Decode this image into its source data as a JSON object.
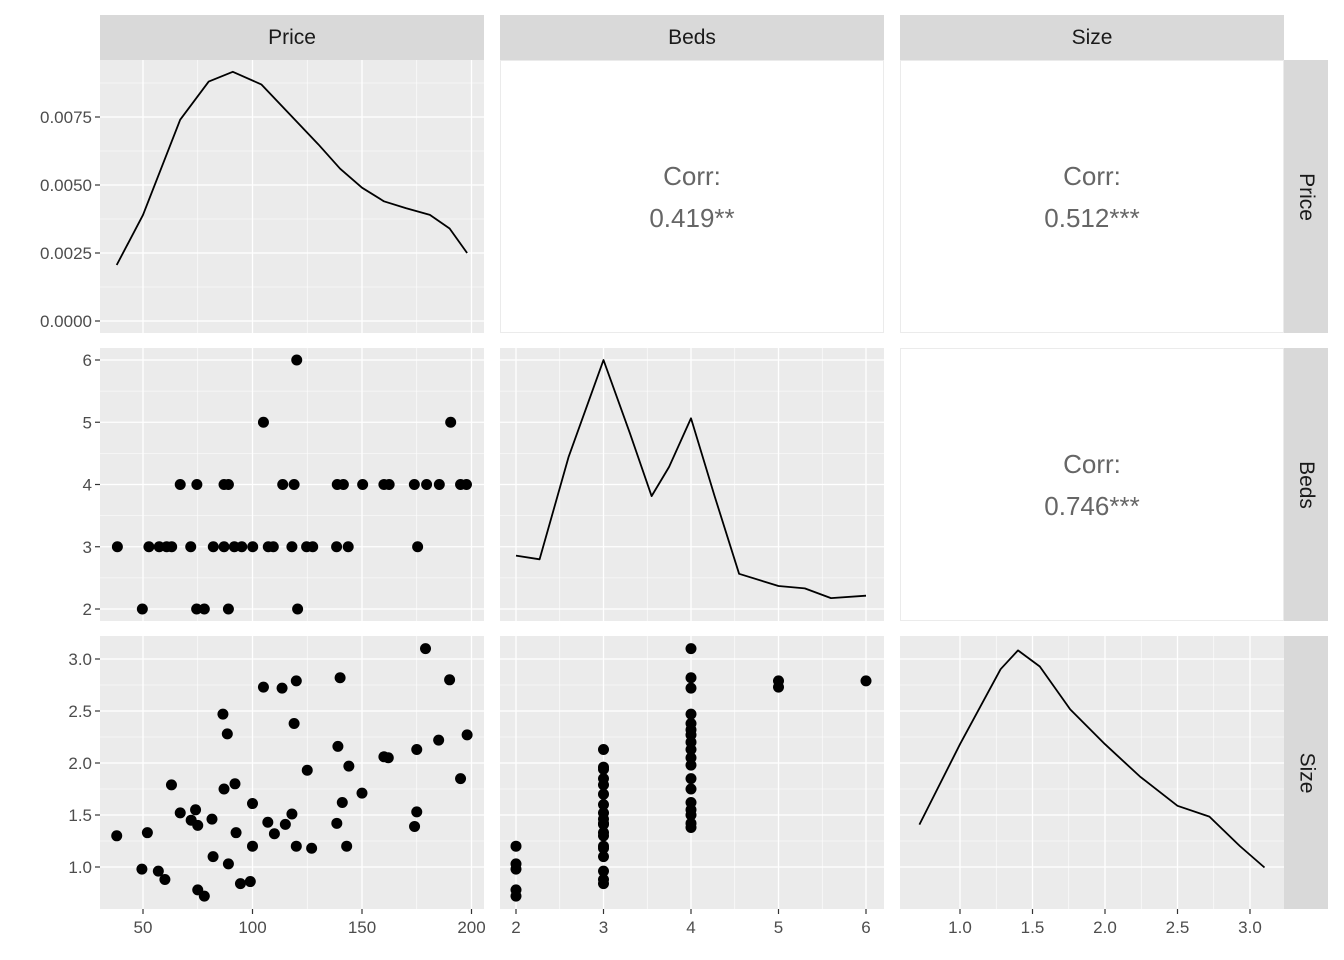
{
  "chart_data": {
    "type": "scatter-matrix",
    "variables": [
      "Price",
      "Beds",
      "Size"
    ],
    "correlations": [
      {
        "pair": [
          "Price",
          "Beds"
        ],
        "label": "Corr:",
        "value": "0.419**"
      },
      {
        "pair": [
          "Price",
          "Size"
        ],
        "label": "Corr:",
        "value": "0.512***"
      },
      {
        "pair": [
          "Beds",
          "Size"
        ],
        "label": "Corr:",
        "value": "0.746***"
      }
    ],
    "axes": {
      "price_ticks": [
        "50",
        "100",
        "150",
        "200"
      ],
      "beds_ticks": [
        "2",
        "3",
        "4",
        "5",
        "6"
      ],
      "size_ticks": [
        "1.0",
        "1.5",
        "2.0",
        "2.5",
        "3.0"
      ],
      "density_ticks": [
        "0.0000",
        "0.0025",
        "0.0050",
        "0.0075"
      ]
    },
    "price_density": [
      [
        38,
        0.00206
      ],
      [
        50,
        0.0039
      ],
      [
        67,
        0.0074
      ],
      [
        80,
        0.0088
      ],
      [
        91,
        0.00916
      ],
      [
        104,
        0.0087
      ],
      [
        117,
        0.0076
      ],
      [
        130,
        0.0065
      ],
      [
        140,
        0.0056
      ],
      [
        150,
        0.0049
      ],
      [
        160,
        0.0044
      ],
      [
        170,
        0.00415
      ],
      [
        181,
        0.0039
      ],
      [
        190,
        0.0034
      ],
      [
        198,
        0.0025
      ]
    ],
    "beds_density_relative": [
      [
        2,
        0.195
      ],
      [
        2.27,
        0.18
      ],
      [
        2.6,
        0.6
      ],
      [
        3,
        1.0
      ],
      [
        3.3,
        0.7
      ],
      [
        3.55,
        0.44
      ],
      [
        3.75,
        0.56
      ],
      [
        4,
        0.76
      ],
      [
        4.27,
        0.44
      ],
      [
        4.55,
        0.12
      ],
      [
        5,
        0.07
      ],
      [
        5.3,
        0.06
      ],
      [
        5.6,
        0.02
      ],
      [
        6,
        0.03
      ]
    ],
    "size_density_relative": [
      [
        0.72,
        0.3
      ],
      [
        1.0,
        0.6
      ],
      [
        1.28,
        0.88
      ],
      [
        1.4,
        0.95
      ],
      [
        1.55,
        0.89
      ],
      [
        1.76,
        0.73
      ],
      [
        2.0,
        0.6
      ],
      [
        2.24,
        0.48
      ],
      [
        2.5,
        0.37
      ],
      [
        2.72,
        0.33
      ],
      [
        2.93,
        0.22
      ],
      [
        3.1,
        0.14
      ]
    ],
    "price_beds": [
      [
        67,
        4
      ],
      [
        74.6,
        4
      ],
      [
        87,
        4
      ],
      [
        89,
        4
      ],
      [
        113.8,
        4
      ],
      [
        119,
        4
      ],
      [
        138.7,
        4
      ],
      [
        141.5,
        4
      ],
      [
        150.3,
        4
      ],
      [
        160,
        4
      ],
      [
        162.4,
        4
      ],
      [
        173.9,
        4
      ],
      [
        179.5,
        4
      ],
      [
        185.3,
        4
      ],
      [
        195,
        4
      ],
      [
        197.7,
        4
      ],
      [
        38.3,
        3
      ],
      [
        52.7,
        3
      ],
      [
        57.4,
        3
      ],
      [
        60.8,
        3
      ],
      [
        63.1,
        3
      ],
      [
        71.8,
        3
      ],
      [
        82.1,
        3
      ],
      [
        87,
        3
      ],
      [
        91.7,
        3
      ],
      [
        95.1,
        3
      ],
      [
        100.1,
        3
      ],
      [
        107.2,
        3
      ],
      [
        109.5,
        3
      ],
      [
        118,
        3
      ],
      [
        124.7,
        3
      ],
      [
        127.5,
        3
      ],
      [
        138.4,
        3
      ],
      [
        143.7,
        3
      ],
      [
        175.4,
        3
      ],
      [
        49.7,
        2
      ],
      [
        74.5,
        2
      ],
      [
        78,
        2
      ],
      [
        89,
        2
      ],
      [
        120.6,
        2
      ],
      [
        105,
        5
      ],
      [
        190.5,
        5
      ],
      [
        120.2,
        6
      ]
    ],
    "price_size": [
      [
        38,
        1.3
      ],
      [
        49.5,
        0.98
      ],
      [
        52,
        1.33
      ],
      [
        57,
        0.96
      ],
      [
        60,
        0.88
      ],
      [
        63,
        1.79
      ],
      [
        67,
        1.52
      ],
      [
        72,
        1.45
      ],
      [
        74,
        1.55
      ],
      [
        75,
        1.4
      ],
      [
        75,
        0.78
      ],
      [
        78,
        0.72
      ],
      [
        82,
        1.1
      ],
      [
        81.5,
        1.46
      ],
      [
        86.5,
        2.47
      ],
      [
        87,
        1.75
      ],
      [
        88.5,
        2.28
      ],
      [
        92,
        1.8
      ],
      [
        89,
        1.03
      ],
      [
        92.5,
        1.33
      ],
      [
        94.5,
        0.84
      ],
      [
        99,
        0.86
      ],
      [
        100,
        1.2
      ],
      [
        100,
        1.61
      ],
      [
        105,
        2.73
      ],
      [
        107,
        1.43
      ],
      [
        110,
        1.32
      ],
      [
        113.5,
        2.72
      ],
      [
        115,
        1.41
      ],
      [
        118,
        1.51
      ],
      [
        119,
        2.38
      ],
      [
        120,
        2.79
      ],
      [
        120,
        1.2
      ],
      [
        125,
        1.93
      ],
      [
        127,
        1.18
      ],
      [
        138.5,
        1.42
      ],
      [
        139,
        2.16
      ],
      [
        140,
        2.82
      ],
      [
        141,
        1.62
      ],
      [
        143,
        1.2
      ],
      [
        144,
        1.97
      ],
      [
        150,
        1.71
      ],
      [
        160,
        2.06
      ],
      [
        162,
        2.05
      ],
      [
        174,
        1.39
      ],
      [
        175,
        1.53
      ],
      [
        175,
        2.13
      ],
      [
        179,
        3.1
      ],
      [
        185,
        2.22
      ],
      [
        190,
        2.8
      ],
      [
        195,
        1.85
      ],
      [
        198,
        2.27
      ]
    ],
    "beds_size": [
      [
        2,
        1.2
      ],
      [
        2,
        1.03
      ],
      [
        2,
        0.98
      ],
      [
        2,
        0.78
      ],
      [
        2,
        0.72
      ],
      [
        3,
        0.84
      ],
      [
        3,
        0.88
      ],
      [
        3,
        0.96
      ],
      [
        3,
        1.1
      ],
      [
        3,
        1.18
      ],
      [
        3,
        1.2
      ],
      [
        3,
        1.3
      ],
      [
        3,
        1.33
      ],
      [
        3,
        1.41
      ],
      [
        3,
        1.42
      ],
      [
        3,
        1.46
      ],
      [
        3,
        1.52
      ],
      [
        3,
        1.6
      ],
      [
        3,
        1.7
      ],
      [
        3,
        1.79
      ],
      [
        3,
        1.85
      ],
      [
        3,
        1.94
      ],
      [
        3,
        1.96
      ],
      [
        3,
        2.13
      ],
      [
        4,
        1.38
      ],
      [
        4,
        1.42
      ],
      [
        4,
        1.5
      ],
      [
        4,
        1.55
      ],
      [
        4,
        1.62
      ],
      [
        4,
        1.75
      ],
      [
        4,
        1.85
      ],
      [
        4,
        1.98
      ],
      [
        4,
        2.05
      ],
      [
        4,
        2.13
      ],
      [
        4,
        2.2
      ],
      [
        4,
        2.27
      ],
      [
        4,
        2.32
      ],
      [
        4,
        2.38
      ],
      [
        4,
        2.47
      ],
      [
        4,
        2.72
      ],
      [
        4,
        2.82
      ],
      [
        4,
        3.1
      ],
      [
        5,
        2.73
      ],
      [
        5,
        2.79
      ],
      [
        6,
        2.79
      ]
    ]
  }
}
